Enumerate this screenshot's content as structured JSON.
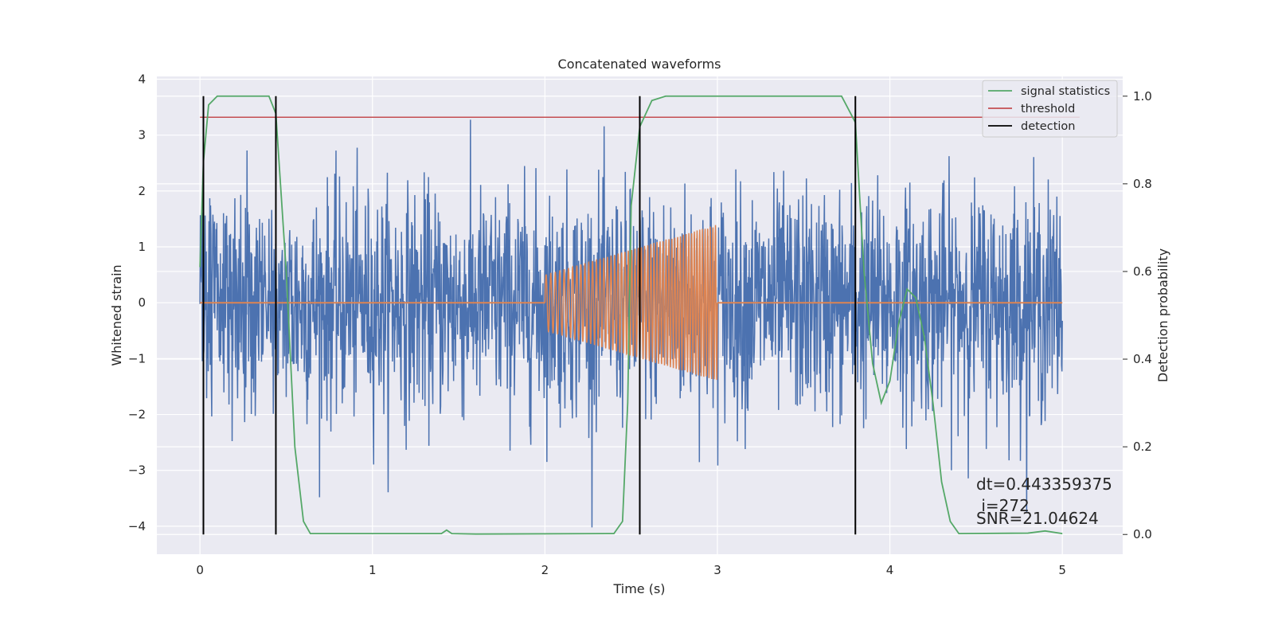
{
  "chart_data": {
    "type": "line",
    "title": "Concatenated waveforms",
    "xlabel": "Time (s)",
    "ylabel": "Whitened strain",
    "y2label": "Detection probability",
    "xlim": [
      -0.25,
      5.35
    ],
    "ylim": [
      -4.5,
      4.05
    ],
    "y2lim": [
      -0.045,
      1.045
    ],
    "xticks": [
      0,
      1,
      2,
      3,
      4,
      5
    ],
    "yticks": [
      -4,
      -3,
      -2,
      -1,
      0,
      1,
      2,
      3,
      4
    ],
    "y2ticks": [
      0.0,
      0.2,
      0.4,
      0.6,
      0.8,
      1.0
    ],
    "grid": true,
    "legend_position": "upper-right",
    "colors": {
      "background": "#eaeaf2",
      "grid": "#ffffff",
      "noise": "#4c72b0",
      "injection": "#dd8452",
      "signal_statistics": "#55a868",
      "threshold": "#c44e52",
      "detection": "#000000"
    },
    "legend": [
      {
        "name": "signal statistics",
        "color": "#55a868"
      },
      {
        "name": "threshold",
        "color": "#c44e52"
      },
      {
        "name": "detection",
        "color": "#000000"
      }
    ],
    "noise": {
      "x_range": [
        0,
        5
      ],
      "typical_amplitude": 1.0,
      "max_abs": 4.1
    },
    "injection": {
      "x_range": [
        2.0,
        3.0
      ],
      "amp_start": 0.5,
      "amp_end": 1.4,
      "cycles": 52,
      "baseline": 0
    },
    "signal_statistics": {
      "axis": "right",
      "x": [
        0,
        0.02,
        0.05,
        0.1,
        0.4,
        0.44,
        0.5,
        0.55,
        0.6,
        0.64,
        0.8,
        1.4,
        1.43,
        1.46,
        1.6,
        2.4,
        2.45,
        2.48,
        2.5,
        2.55,
        2.62,
        2.7,
        3.72,
        3.8,
        3.85,
        3.9,
        3.95,
        4.0,
        4.05,
        4.1,
        4.15,
        4.2,
        4.25,
        4.3,
        4.35,
        4.4,
        4.8,
        4.9,
        5.0
      ],
      "y": [
        0.61,
        0.85,
        0.98,
        1.0,
        1.0,
        0.96,
        0.6,
        0.2,
        0.03,
        0.002,
        0.002,
        0.002,
        0.01,
        0.002,
        0.001,
        0.002,
        0.03,
        0.3,
        0.75,
        0.93,
        0.99,
        1.0,
        1.0,
        0.94,
        0.6,
        0.39,
        0.3,
        0.35,
        0.48,
        0.56,
        0.54,
        0.45,
        0.3,
        0.12,
        0.03,
        0.002,
        0.003,
        0.008,
        0.002
      ]
    },
    "threshold": {
      "axis": "right",
      "value": 0.952,
      "x_range": [
        0,
        5.1
      ]
    },
    "detections": [
      0.02,
      0.44,
      2.55,
      3.8
    ],
    "annotations": [
      "dt=0.443359375",
      " i=272",
      "SNR=21.04624"
    ]
  }
}
